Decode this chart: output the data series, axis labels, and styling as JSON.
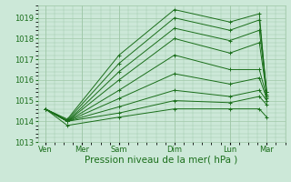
{
  "bg_color": "#cce8d8",
  "grid_color": "#a0c8a8",
  "line_color": "#1a6e1a",
  "marker_color": "#1a6e1a",
  "xlabel": "Pression niveau de la mer( hPa )",
  "xlabel_fontsize": 7.5,
  "tick_fontsize": 6,
  "ylim": [
    1013.0,
    1019.6
  ],
  "yticks": [
    1013,
    1014,
    1015,
    1016,
    1017,
    1018,
    1019
  ],
  "day_labels": [
    "Ven",
    "Mer",
    "Sam",
    "Dim",
    "Lun",
    "Mar"
  ],
  "day_x": [
    0.0,
    1.0,
    2.0,
    3.5,
    5.0,
    6.0
  ],
  "xlim": [
    -0.2,
    6.5
  ],
  "series": [
    [
      1014.6,
      1014.1,
      1017.2,
      1019.4,
      1018.8,
      1019.2,
      1015.2
    ],
    [
      1014.6,
      1014.05,
      1016.8,
      1019.0,
      1018.4,
      1018.9,
      1015.4
    ],
    [
      1014.6,
      1014.0,
      1016.4,
      1018.5,
      1017.9,
      1018.4,
      1015.4
    ],
    [
      1014.6,
      1014.0,
      1016.0,
      1018.0,
      1017.3,
      1017.8,
      1015.3
    ],
    [
      1014.6,
      1014.0,
      1015.5,
      1017.2,
      1016.5,
      1016.5,
      1015.2
    ],
    [
      1014.6,
      1014.0,
      1015.1,
      1016.3,
      1015.8,
      1016.1,
      1015.1
    ],
    [
      1014.6,
      1014.0,
      1014.7,
      1015.5,
      1015.2,
      1015.5,
      1015.0
    ],
    [
      1014.6,
      1014.0,
      1014.4,
      1015.0,
      1014.9,
      1015.2,
      1014.8
    ],
    [
      1014.6,
      1013.8,
      1014.2,
      1014.6,
      1014.6,
      1014.6,
      1014.2
    ]
  ],
  "x_vals": [
    0.0,
    0.6,
    2.0,
    3.5,
    5.0,
    5.8,
    6.0
  ]
}
